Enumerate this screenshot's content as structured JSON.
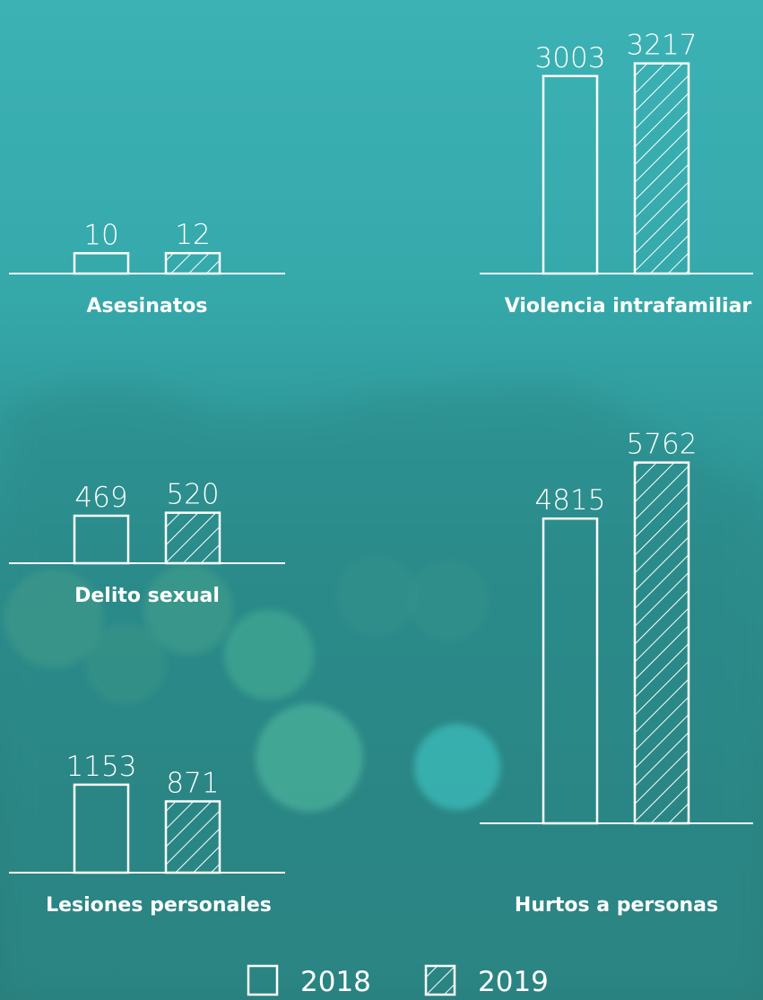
{
  "chart_data": [
    {
      "type": "bar",
      "title": "Asesinatos",
      "values": [
        10,
        12
      ]
    },
    {
      "type": "bar",
      "title": "Violencia intrafamiliar",
      "values": [
        3003,
        3217
      ]
    },
    {
      "type": "bar",
      "title": "Delito sexual",
      "values": [
        469,
        520
      ]
    },
    {
      "type": "bar",
      "title": "Lesiones personales",
      "values": [
        1153,
        871
      ]
    },
    {
      "type": "bar",
      "title": "Hurtos a personas",
      "values": [
        4815,
        5762
      ]
    }
  ],
  "legend": {
    "items": [
      "2018",
      "2019"
    ]
  }
}
